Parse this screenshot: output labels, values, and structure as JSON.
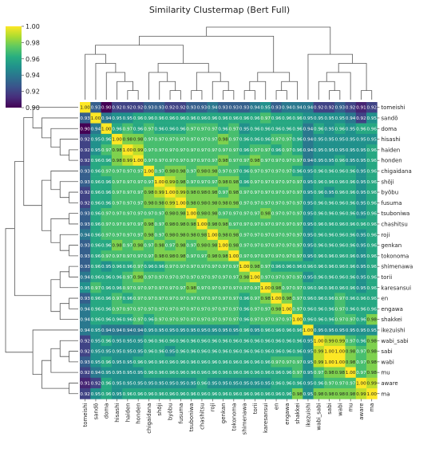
{
  "chart_data": {
    "type": "heatmap",
    "title": "Similarity Clustermap (Bert Full)",
    "colormap": "viridis",
    "colorbar": {
      "min": 0.9,
      "max": 1.0,
      "ticks": [
        "0.90",
        "0.92",
        "0.94",
        "0.96",
        "0.98",
        "1.00"
      ]
    },
    "labels": [
      "tomeishi",
      "sandō",
      "doma",
      "hisashi",
      "haiden",
      "honden",
      "chigaidana",
      "shōji",
      "byōbu",
      "fusuma",
      "tsuboniwa",
      "chashitsu",
      "roji",
      "genkan",
      "tokonoma",
      "shimenawa",
      "torii",
      "karesansui",
      "en",
      "engawa",
      "shakkei",
      "ikezuishi",
      "wabi_sabi",
      "sabi",
      "wabi",
      "mu",
      "aware",
      "ma"
    ],
    "values": [
      [
        1.0,
        0.93,
        0.9,
        0.92,
        0.92,
        0.92,
        0.93,
        0.93,
        0.92,
        0.92,
        0.93,
        0.93,
        0.94,
        0.93,
        0.93,
        0.93,
        0.94,
        0.95,
        0.93,
        0.94,
        0.94,
        0.94,
        0.92,
        0.92,
        0.93,
        0.92,
        0.91,
        0.92
      ],
      [
        0.93,
        1.0,
        0.94,
        0.95,
        0.95,
        0.96,
        0.96,
        0.96,
        0.96,
        0.96,
        0.96,
        0.96,
        0.96,
        0.96,
        0.96,
        0.96,
        0.96,
        0.97,
        0.96,
        0.96,
        0.96,
        0.95,
        0.95,
        0.95,
        0.95,
        0.94,
        0.92,
        0.95
      ],
      [
        0.9,
        0.94,
        1.0,
        0.96,
        0.97,
        0.96,
        0.97,
        0.96,
        0.96,
        0.96,
        0.97,
        0.97,
        0.97,
        0.96,
        0.97,
        0.95,
        0.96,
        0.96,
        0.96,
        0.96,
        0.96,
        0.94,
        0.96,
        0.95,
        0.96,
        0.95,
        0.96,
        0.96
      ],
      [
        0.92,
        0.95,
        0.96,
        1.0,
        0.98,
        0.98,
        0.97,
        0.97,
        0.97,
        0.97,
        0.97,
        0.97,
        0.97,
        0.98,
        0.97,
        0.96,
        0.96,
        0.96,
        0.97,
        0.97,
        0.96,
        0.94,
        0.95,
        0.95,
        0.95,
        0.95,
        0.95,
        0.95
      ],
      [
        0.92,
        0.95,
        0.97,
        0.98,
        1.0,
        0.99,
        0.97,
        0.97,
        0.97,
        0.97,
        0.97,
        0.97,
        0.97,
        0.97,
        0.97,
        0.96,
        0.97,
        0.97,
        0.96,
        0.97,
        0.96,
        0.94,
        0.95,
        0.95,
        0.95,
        0.95,
        0.95,
        0.96
      ],
      [
        0.92,
        0.96,
        0.96,
        0.98,
        0.99,
        1.0,
        0.97,
        0.97,
        0.97,
        0.97,
        0.97,
        0.97,
        0.97,
        0.98,
        0.97,
        0.97,
        0.98,
        0.97,
        0.97,
        0.97,
        0.97,
        0.94,
        0.95,
        0.95,
        0.96,
        0.95,
        0.95,
        0.96
      ],
      [
        0.93,
        0.96,
        0.97,
        0.97,
        0.97,
        0.97,
        1.0,
        0.97,
        0.98,
        0.98,
        0.97,
        0.98,
        0.98,
        0.97,
        0.97,
        0.96,
        0.97,
        0.97,
        0.97,
        0.97,
        0.96,
        0.95,
        0.96,
        0.96,
        0.96,
        0.96,
        0.95,
        0.96
      ],
      [
        0.93,
        0.96,
        0.96,
        0.97,
        0.97,
        0.97,
        0.97,
        1.0,
        0.99,
        0.98,
        0.97,
        0.97,
        0.97,
        0.98,
        0.98,
        0.96,
        0.97,
        0.97,
        0.97,
        0.97,
        0.97,
        0.95,
        0.96,
        0.96,
        0.96,
        0.96,
        0.95,
        0.96
      ],
      [
        0.92,
        0.96,
        0.96,
        0.97,
        0.97,
        0.97,
        0.98,
        0.99,
        1.0,
        0.99,
        0.98,
        0.98,
        0.98,
        0.97,
        0.98,
        0.97,
        0.97,
        0.97,
        0.97,
        0.97,
        0.97,
        0.95,
        0.96,
        0.95,
        0.96,
        0.96,
        0.95,
        0.96
      ],
      [
        0.92,
        0.96,
        0.96,
        0.97,
        0.97,
        0.97,
        0.98,
        0.98,
        0.99,
        1.0,
        0.98,
        0.98,
        0.98,
        0.98,
        0.98,
        0.97,
        0.97,
        0.97,
        0.97,
        0.97,
        0.97,
        0.95,
        0.96,
        0.96,
        0.96,
        0.96,
        0.95,
        0.96
      ],
      [
        0.93,
        0.96,
        0.97,
        0.97,
        0.97,
        0.97,
        0.97,
        0.97,
        0.98,
        0.98,
        1.0,
        0.98,
        0.98,
        0.97,
        0.97,
        0.97,
        0.97,
        0.98,
        0.97,
        0.97,
        0.97,
        0.95,
        0.96,
        0.96,
        0.96,
        0.96,
        0.95,
        0.96
      ],
      [
        0.93,
        0.96,
        0.97,
        0.97,
        0.97,
        0.97,
        0.98,
        0.97,
        0.98,
        0.98,
        0.98,
        1.0,
        0.98,
        0.98,
        0.97,
        0.97,
        0.97,
        0.97,
        0.97,
        0.97,
        0.97,
        0.95,
        0.96,
        0.96,
        0.96,
        0.96,
        0.96,
        0.96
      ],
      [
        0.94,
        0.96,
        0.97,
        0.97,
        0.97,
        0.97,
        0.98,
        0.97,
        0.98,
        0.98,
        0.98,
        0.98,
        1.0,
        0.98,
        0.98,
        0.97,
        0.97,
        0.97,
        0.97,
        0.97,
        0.97,
        0.95,
        0.96,
        0.96,
        0.96,
        0.96,
        0.95,
        0.96
      ],
      [
        0.93,
        0.96,
        0.96,
        0.98,
        0.97,
        0.98,
        0.97,
        0.98,
        0.97,
        0.98,
        0.97,
        0.98,
        0.98,
        1.0,
        0.98,
        0.97,
        0.97,
        0.97,
        0.97,
        0.97,
        0.97,
        0.95,
        0.96,
        0.96,
        0.96,
        0.96,
        0.95,
        0.96
      ],
      [
        0.93,
        0.96,
        0.97,
        0.97,
        0.97,
        0.97,
        0.97,
        0.98,
        0.98,
        0.98,
        0.97,
        0.97,
        0.98,
        0.98,
        1.0,
        0.97,
        0.97,
        0.97,
        0.97,
        0.97,
        0.97,
        0.95,
        0.96,
        0.96,
        0.96,
        0.96,
        0.95,
        0.96
      ],
      [
        0.93,
        0.96,
        0.95,
        0.96,
        0.96,
        0.97,
        0.96,
        0.96,
        0.97,
        0.97,
        0.97,
        0.97,
        0.97,
        0.97,
        0.97,
        1.0,
        0.98,
        0.97,
        0.96,
        0.96,
        0.96,
        0.96,
        0.96,
        0.96,
        0.96,
        0.96,
        0.95,
        0.96
      ],
      [
        0.94,
        0.96,
        0.96,
        0.96,
        0.97,
        0.98,
        0.97,
        0.97,
        0.97,
        0.97,
        0.97,
        0.97,
        0.97,
        0.97,
        0.97,
        0.98,
        1.0,
        0.97,
        0.97,
        0.97,
        0.97,
        0.95,
        0.96,
        0.96,
        0.96,
        0.96,
        0.95,
        0.96
      ],
      [
        0.95,
        0.97,
        0.96,
        0.96,
        0.97,
        0.97,
        0.97,
        0.97,
        0.97,
        0.97,
        0.98,
        0.97,
        0.97,
        0.97,
        0.97,
        0.97,
        0.97,
        1.0,
        0.98,
        0.97,
        0.97,
        0.96,
        0.96,
        0.96,
        0.96,
        0.96,
        0.95,
        0.96
      ],
      [
        0.93,
        0.96,
        0.96,
        0.97,
        0.96,
        0.97,
        0.97,
        0.97,
        0.97,
        0.97,
        0.97,
        0.97,
        0.97,
        0.97,
        0.97,
        0.96,
        0.97,
        0.98,
        1.0,
        0.98,
        0.97,
        0.96,
        0.96,
        0.96,
        0.97,
        0.96,
        0.96,
        0.96
      ],
      [
        0.94,
        0.96,
        0.96,
        0.97,
        0.97,
        0.97,
        0.97,
        0.97,
        0.97,
        0.97,
        0.97,
        0.97,
        0.97,
        0.97,
        0.97,
        0.96,
        0.97,
        0.97,
        0.98,
        1.0,
        0.97,
        0.96,
        0.96,
        0.96,
        0.97,
        0.96,
        0.96,
        0.96
      ],
      [
        0.94,
        0.96,
        0.96,
        0.96,
        0.96,
        0.97,
        0.96,
        0.97,
        0.97,
        0.97,
        0.97,
        0.97,
        0.97,
        0.97,
        0.97,
        0.96,
        0.97,
        0.97,
        0.97,
        0.97,
        1.0,
        0.96,
        0.96,
        0.96,
        0.97,
        0.97,
        0.96,
        0.98
      ],
      [
        0.94,
        0.95,
        0.94,
        0.94,
        0.94,
        0.94,
        0.95,
        0.95,
        0.95,
        0.95,
        0.95,
        0.95,
        0.95,
        0.95,
        0.95,
        0.96,
        0.95,
        0.96,
        0.96,
        0.96,
        0.96,
        1.0,
        0.95,
        0.95,
        0.95,
        0.95,
        0.95,
        0.95
      ],
      [
        0.92,
        0.95,
        0.96,
        0.95,
        0.95,
        0.95,
        0.96,
        0.96,
        0.96,
        0.96,
        0.96,
        0.96,
        0.96,
        0.96,
        0.96,
        0.96,
        0.96,
        0.96,
        0.96,
        0.96,
        0.96,
        0.95,
        1.0,
        0.99,
        0.99,
        0.97,
        0.96,
        0.98
      ],
      [
        0.92,
        0.95,
        0.95,
        0.95,
        0.95,
        0.95,
        0.96,
        0.96,
        0.95,
        0.96,
        0.96,
        0.96,
        0.96,
        0.96,
        0.96,
        0.96,
        0.96,
        0.96,
        0.96,
        0.96,
        0.96,
        0.95,
        0.99,
        1.0,
        1.0,
        0.98,
        0.97,
        0.98
      ],
      [
        0.93,
        0.95,
        0.96,
        0.95,
        0.95,
        0.96,
        0.96,
        0.96,
        0.96,
        0.96,
        0.96,
        0.96,
        0.96,
        0.96,
        0.96,
        0.96,
        0.96,
        0.96,
        0.97,
        0.97,
        0.97,
        0.95,
        0.99,
        1.0,
        1.0,
        0.98,
        0.97,
        0.98
      ],
      [
        0.92,
        0.94,
        0.95,
        0.95,
        0.95,
        0.95,
        0.96,
        0.96,
        0.96,
        0.96,
        0.96,
        0.96,
        0.96,
        0.96,
        0.96,
        0.96,
        0.96,
        0.96,
        0.96,
        0.96,
        0.97,
        0.95,
        0.97,
        0.98,
        0.98,
        1.0,
        0.97,
        0.98
      ],
      [
        0.91,
        0.92,
        0.96,
        0.95,
        0.95,
        0.95,
        0.95,
        0.95,
        0.95,
        0.95,
        0.95,
        0.96,
        0.95,
        0.95,
        0.95,
        0.95,
        0.95,
        0.95,
        0.96,
        0.96,
        0.96,
        0.95,
        0.96,
        0.97,
        0.97,
        0.97,
        1.0,
        0.99
      ],
      [
        0.92,
        0.95,
        0.96,
        0.95,
        0.96,
        0.96,
        0.96,
        0.96,
        0.96,
        0.96,
        0.96,
        0.96,
        0.96,
        0.96,
        0.96,
        0.96,
        0.96,
        0.96,
        0.96,
        0.96,
        0.98,
        0.95,
        0.98,
        0.98,
        0.98,
        0.98,
        0.99,
        1.0
      ]
    ]
  }
}
